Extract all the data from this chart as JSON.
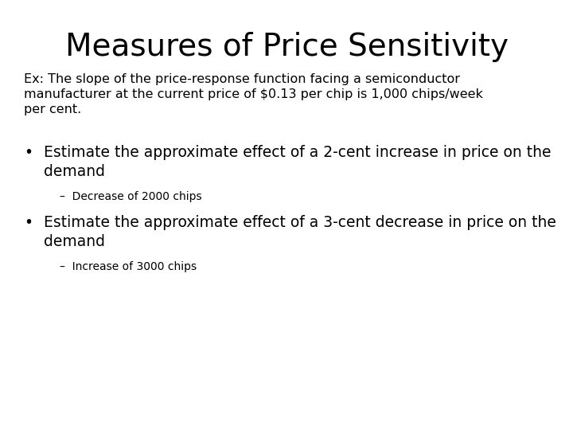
{
  "title": "Measures of Price Sensitivity",
  "title_fontsize": 28,
  "background_color": "#ffffff",
  "text_color": "#000000",
  "intro_text": "Ex: The slope of the price-response function facing a semiconductor\nmanufacturer at the current price of $0.13 per chip is 1,000 chips/week\nper cent.",
  "intro_fontsize": 11.5,
  "bullet1_text": "Estimate the approximate effect of a 2-cent increase in price on the\ndemand",
  "bullet1_fontsize": 13.5,
  "sub1_text": "–  Decrease of 2000 chips",
  "sub1_fontsize": 10,
  "bullet2_text": "Estimate the approximate effect of a 3-cent decrease in price on the\ndemand",
  "bullet2_fontsize": 13.5,
  "sub2_text": "–  Increase of 3000 chips",
  "sub2_fontsize": 10,
  "bullet_symbol": "•",
  "font_family": "DejaVu Sans"
}
